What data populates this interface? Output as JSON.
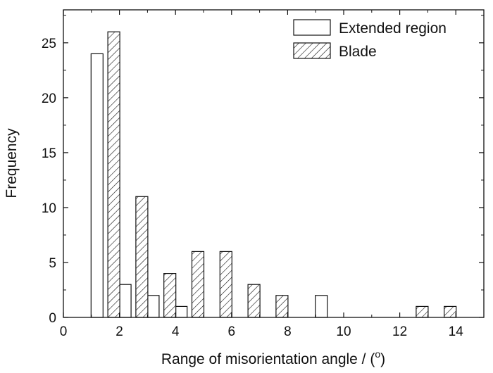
{
  "chart_data": {
    "type": "bar",
    "xlabel": "Range of misorientation angle / (",
    "xlabel_sup": "o",
    "xlabel_end": ")",
    "ylabel": "Frequency",
    "xlim": [
      0,
      15
    ],
    "ylim": [
      0,
      28
    ],
    "xticks": [
      0,
      2,
      4,
      6,
      8,
      10,
      12,
      14
    ],
    "yticks": [
      0,
      5,
      10,
      15,
      20,
      25
    ],
    "grid": false,
    "legend_position": "top-right",
    "series": [
      {
        "name": "Extended region",
        "pattern": "none",
        "x": [
          1.2,
          2.2,
          3.2,
          4.2,
          9.2
        ],
        "values": [
          24,
          3,
          2,
          1,
          2
        ]
      },
      {
        "name": "Blade",
        "pattern": "diagonal-hatch",
        "x": [
          1.8,
          2.8,
          3.8,
          4.8,
          5.8,
          6.8,
          7.8,
          12.8,
          13.8
        ],
        "values": [
          26,
          11,
          4,
          6,
          6,
          3,
          2,
          1,
          1
        ]
      }
    ],
    "colors": {
      "stroke": "#111111",
      "fill": "#ffffff"
    }
  }
}
